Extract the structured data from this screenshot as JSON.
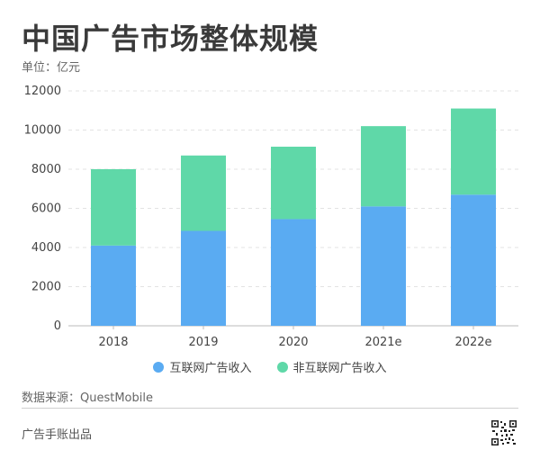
{
  "header": {
    "title": "中国广告市场整体规模",
    "unit": "单位：亿元"
  },
  "footer": {
    "source": "数据来源：QuestMobile",
    "brand": "广告手账出品"
  },
  "colors": {
    "internet": "#5aabf2",
    "non_internet": "#5fd8a8",
    "grid": "#e3e3e3",
    "axis": "#bbbbbb"
  },
  "chart_data": {
    "type": "bar",
    "stacked": true,
    "categories": [
      "2018",
      "2019",
      "2020",
      "2021e",
      "2022e"
    ],
    "series": [
      {
        "name": "互联网广告收入",
        "values": [
          4100,
          4850,
          5450,
          6100,
          6700
        ]
      },
      {
        "name": "非互联网广告收入",
        "values": [
          3900,
          3850,
          3700,
          4100,
          4400
        ]
      }
    ],
    "ylim": [
      0,
      12000
    ],
    "yticks": [
      0,
      2000,
      4000,
      6000,
      8000,
      10000,
      12000
    ],
    "grid": true,
    "legend_position": "bottom",
    "xlabel": "",
    "ylabel": ""
  }
}
